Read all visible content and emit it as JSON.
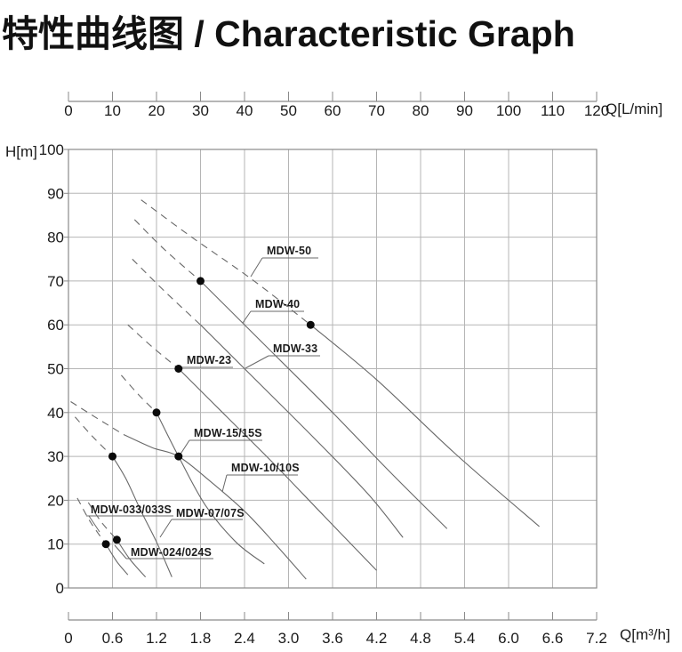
{
  "title": "特性曲线图 / Characteristic Graph",
  "chart_data": {
    "type": "line",
    "title": "特性曲线图 / Characteristic Graph",
    "grid": true,
    "axes": {
      "top": {
        "label": "Q[L/min]",
        "range": [
          0,
          120
        ],
        "tick_values": [
          0,
          10,
          20,
          30,
          40,
          50,
          60,
          70,
          80,
          90,
          100,
          110,
          120
        ],
        "tick_labels": [
          "0",
          "10",
          "20",
          "30",
          "40",
          "50",
          "60",
          "70",
          "80",
          "90",
          "100",
          "110",
          "120"
        ]
      },
      "bottom": {
        "label": "Q[m³/h]",
        "range": [
          0,
          7.2
        ],
        "tick_values": [
          0,
          0.6,
          1.2,
          1.8,
          2.4,
          3.0,
          3.6,
          4.2,
          4.8,
          5.4,
          6.0,
          6.6,
          7.2
        ],
        "tick_labels": [
          "0",
          "0.6",
          "1.2",
          "1.8",
          "2.4",
          "3.0",
          "3.6",
          "4.2",
          "4.8",
          "5.4",
          "6.0",
          "6.6",
          "7.2"
        ]
      },
      "left": {
        "label": "H[m]",
        "range": [
          0,
          100
        ],
        "tick_values": [
          100,
          90,
          80,
          70,
          60,
          50,
          40,
          30,
          20,
          10,
          0
        ],
        "tick_labels": [
          "100",
          "90",
          "80",
          "70",
          "60",
          "50",
          "40",
          "30",
          "20",
          "10",
          "0"
        ]
      }
    },
    "units": {
      "x": "Q in L/min (top) and m³/h (bottom)",
      "y": "H in m"
    },
    "series": [
      {
        "name": "MDW-50",
        "dashed": [
          [
            16.5,
            88.5
          ],
          [
            28,
            80
          ],
          [
            41.5,
            70.5
          ],
          [
            55,
            60
          ]
        ],
        "solid": [
          [
            55,
            60
          ],
          [
            70,
            47.5
          ],
          [
            88,
            30.5
          ],
          [
            107,
            14
          ]
        ],
        "dot": [
          55,
          60
        ]
      },
      {
        "name": "MDW-40",
        "dashed": [
          [
            15,
            84
          ],
          [
            22,
            77
          ],
          [
            30,
            70
          ]
        ],
        "solid": [
          [
            30,
            70
          ],
          [
            45,
            55
          ],
          [
            60,
            40
          ],
          [
            73,
            26.5
          ],
          [
            86,
            13.5
          ]
        ],
        "dot": [
          30,
          70
        ]
      },
      {
        "name": "MDW-33",
        "dashed": [
          [
            14.5,
            75
          ],
          [
            22,
            67.5
          ],
          [
            30,
            60
          ]
        ],
        "solid": [
          [
            30,
            60
          ],
          [
            40,
            50
          ],
          [
            55,
            35
          ],
          [
            68,
            21.5
          ],
          [
            76,
            11.5
          ]
        ],
        "dot": null
      },
      {
        "name": "MDW-23",
        "dashed": [
          [
            13.5,
            60
          ],
          [
            19,
            55
          ],
          [
            25,
            50
          ]
        ],
        "solid": [
          [
            25,
            50
          ],
          [
            35,
            40
          ],
          [
            46,
            29
          ],
          [
            58,
            16.5
          ],
          [
            70,
            4
          ]
        ],
        "dot": [
          25,
          50
        ]
      },
      {
        "name": "MDW-15/15S",
        "dashed": [
          [
            12,
            48.5
          ],
          [
            16,
            44
          ],
          [
            20,
            40
          ]
        ],
        "solid": [
          [
            20,
            40
          ],
          [
            25,
            30
          ],
          [
            31,
            19
          ],
          [
            38,
            10.5
          ],
          [
            44.5,
            5.5
          ]
        ],
        "dot": [
          20,
          40
        ]
      },
      {
        "name": "MDW-10/10S",
        "dashed": [
          [
            0.5,
            42.5
          ],
          [
            6,
            39
          ],
          [
            12.5,
            35
          ]
        ],
        "solid": [
          [
            12.5,
            35
          ],
          [
            19,
            32
          ],
          [
            25,
            30
          ],
          [
            32,
            24.5
          ],
          [
            40,
            17.5
          ],
          [
            47,
            10
          ],
          [
            54,
            2
          ]
        ],
        "dot": [
          25,
          30
        ]
      },
      {
        "name": "MDW-07/07S",
        "dashed": [
          [
            1.5,
            39
          ],
          [
            5.5,
            34.5
          ],
          [
            10,
            30
          ]
        ],
        "solid": [
          [
            10,
            30
          ],
          [
            13,
            25
          ],
          [
            16.5,
            17.5
          ],
          [
            20,
            10.5
          ],
          [
            23.5,
            2.5
          ]
        ],
        "dot": [
          10,
          30
        ]
      },
      {
        "name": "MDW-033/033S",
        "dashed": [
          [
            4.5,
            19.5
          ],
          [
            7.5,
            15
          ],
          [
            11,
            11
          ]
        ],
        "solid": [
          [
            11,
            11
          ],
          [
            14,
            6.5
          ],
          [
            17.5,
            2.5
          ]
        ],
        "dot": [
          11,
          11
        ]
      },
      {
        "name": "MDW-024/024S",
        "dashed": [
          [
            2,
            20.5
          ],
          [
            5,
            15
          ],
          [
            8.5,
            10
          ]
        ],
        "solid": [
          [
            8.5,
            10
          ],
          [
            11,
            6
          ],
          [
            13.5,
            3
          ]
        ],
        "dot": [
          8.5,
          10
        ]
      }
    ],
    "colors": {
      "curve": "#686868",
      "grid": "#b5b5b5",
      "border": "#8a8a8a",
      "dot": "#0a0a0a",
      "text": "#1a1a1a"
    }
  }
}
